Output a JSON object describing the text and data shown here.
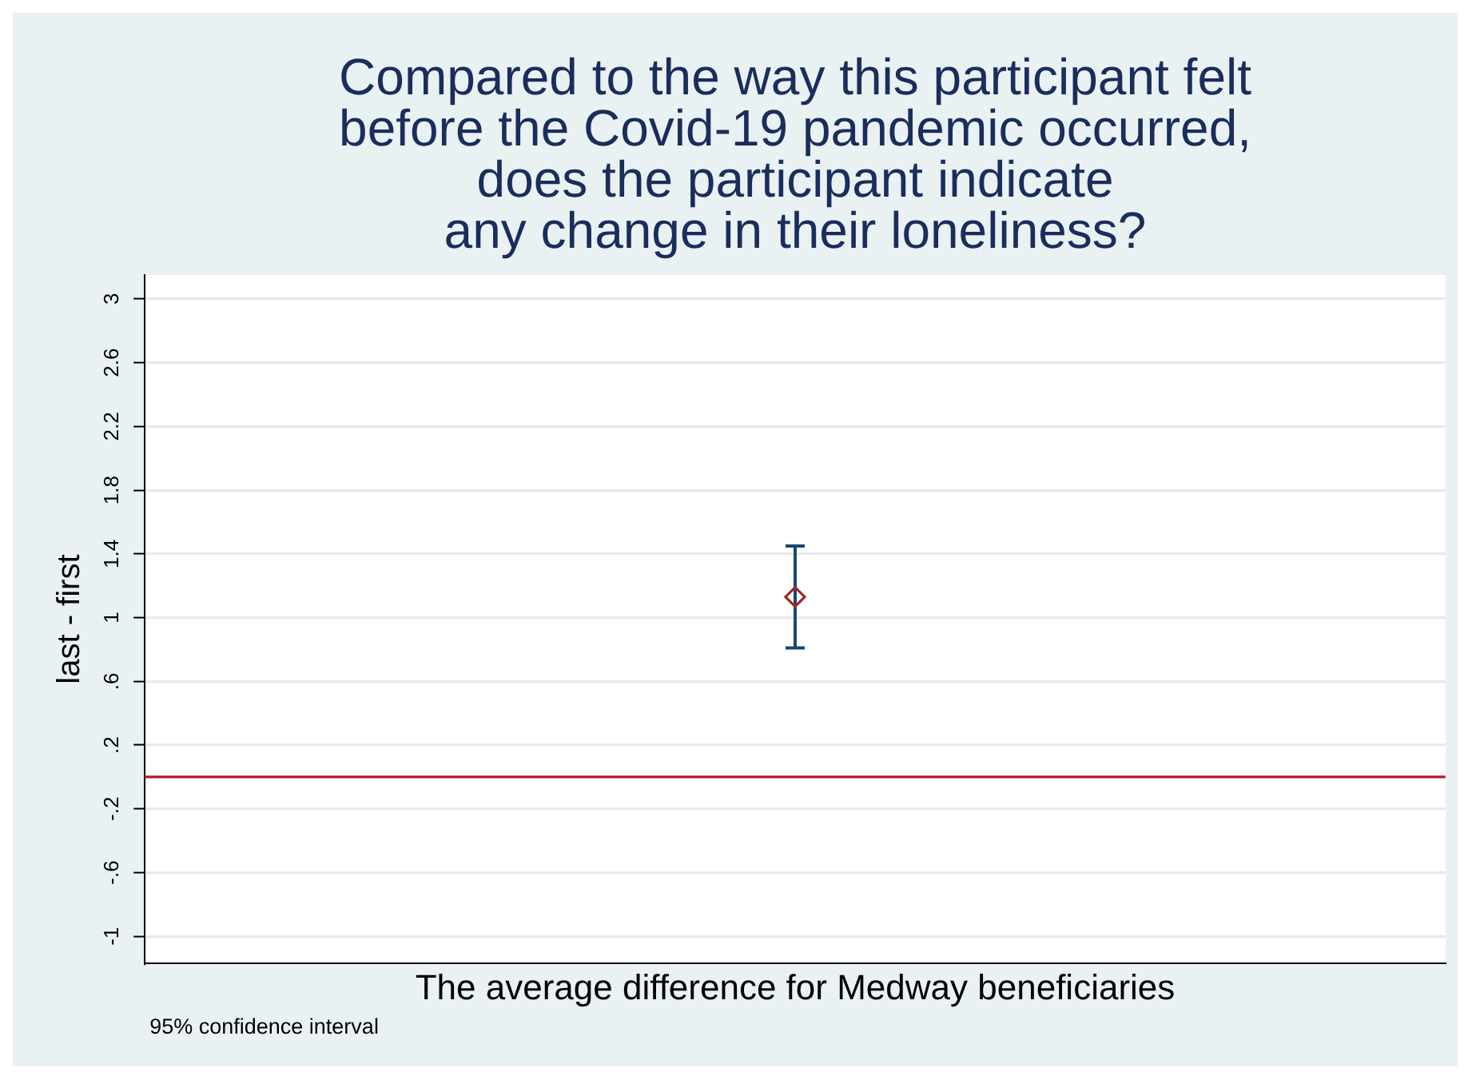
{
  "chart_data": {
    "type": "scatter",
    "title": "Compared to the way this participant felt\nbefore the Covid-19 pandemic occurred,\ndoes the participant indicate\nany change in their loneliness?",
    "xlabel": "The average difference for Medway beneficiaries",
    "ylabel": "last - first",
    "annotations": [
      "95% confidence interval"
    ],
    "categories": [
      null
    ],
    "series": [
      {
        "color": "#9e2a2b",
        "values": [
          1.13
        ],
        "errors": [
          [
            0.81,
            1.45
          ]
        ]
      }
    ],
    "ylim": [
      -1.17,
      3.15
    ],
    "yticks": [
      3,
      2.6,
      2.2,
      1.8,
      1.4,
      1,
      {
        "value": 0.6,
        "label": ".6"
      },
      {
        "value": 0.2,
        "label": ".2"
      },
      {
        "value": -0.2,
        "label": "-.2"
      },
      {
        "value": -0.6,
        "label": "-.6"
      },
      -1
    ],
    "ref_lines": [
      {
        "axis": "y",
        "value": 0,
        "color": "#b5173a"
      }
    ],
    "grid": "y",
    "marker": "diamond"
  }
}
